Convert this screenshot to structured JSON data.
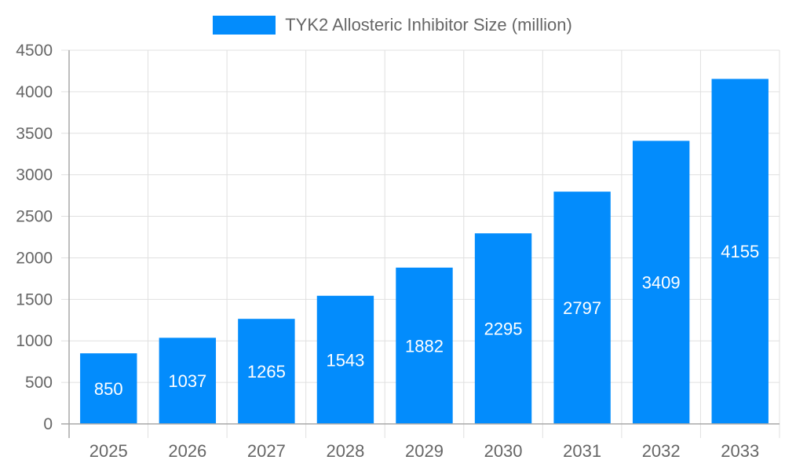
{
  "chart_data": {
    "type": "bar",
    "title": "",
    "xlabel": "",
    "ylabel": "",
    "categories": [
      "2025",
      "2026",
      "2027",
      "2028",
      "2029",
      "2030",
      "2031",
      "2032",
      "2033"
    ],
    "series": [
      {
        "name": "TYK2 Allosteric Inhibitor Size (million)",
        "values": [
          850,
          1037,
          1265,
          1543,
          1882,
          2295,
          2797,
          3409,
          4155
        ],
        "color": "#038cfc"
      }
    ],
    "ylim": [
      0,
      4500
    ],
    "yticks": [
      0,
      500,
      1000,
      1500,
      2000,
      2500,
      3000,
      3500,
      4000,
      4500
    ],
    "grid": true,
    "legend_position": "top",
    "data_labels": true
  },
  "legend": {
    "label": "TYK2 Allosteric Inhibitor Size (million)"
  },
  "colors": {
    "bar": "#038cfc",
    "grid": "#e0e0e0",
    "axis": "#a8a8a8",
    "tick_text": "#666666",
    "data_label": "#ffffff"
  }
}
